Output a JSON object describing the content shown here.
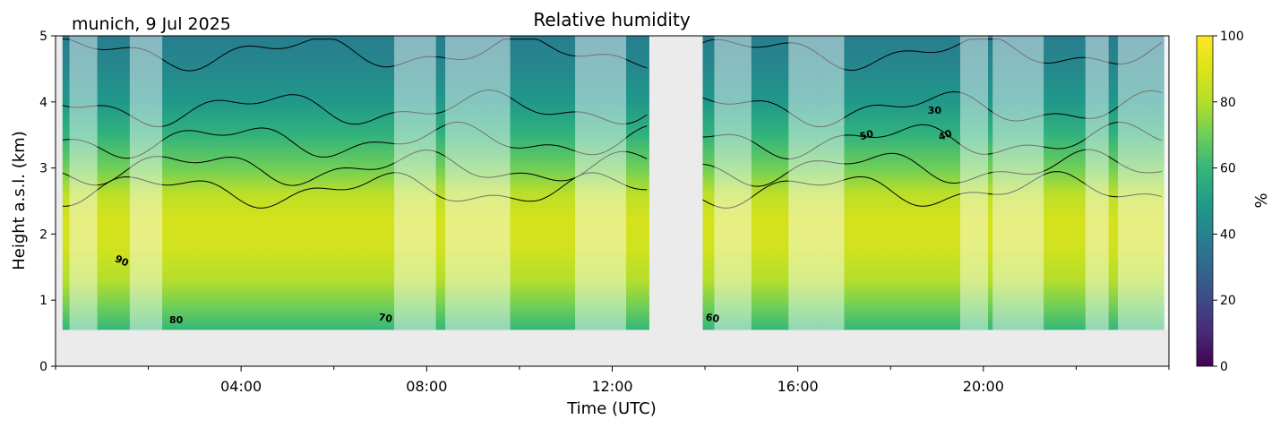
{
  "chart_data": {
    "type": "heatmap",
    "title": "Relative humidity",
    "site_label": "munich, 9 Jul 2025",
    "xlabel": "Time (UTC)",
    "ylabel": "Height a.s.l. (km)",
    "x_range_hours": [
      0,
      24
    ],
    "ylim": [
      0,
      5
    ],
    "x_ticks": [
      {
        "hour": 4,
        "label": "04:00"
      },
      {
        "hour": 8,
        "label": "08:00"
      },
      {
        "hour": 12,
        "label": "12:00"
      },
      {
        "hour": 16,
        "label": "16:00"
      },
      {
        "hour": 20,
        "label": "20:00"
      }
    ],
    "y_ticks": [
      {
        "value": 0,
        "label": "0"
      },
      {
        "value": 1,
        "label": "1"
      },
      {
        "value": 2,
        "label": "2"
      },
      {
        "value": 3,
        "label": "3"
      },
      {
        "value": 4,
        "label": "4"
      },
      {
        "value": 5,
        "label": "5"
      }
    ],
    "colorbar": {
      "label": "%",
      "range": [
        0,
        100
      ],
      "colormap": "viridis",
      "ticks": [
        {
          "value": 0,
          "label": "0"
        },
        {
          "value": 20,
          "label": "20"
        },
        {
          "value": 40,
          "label": "40"
        },
        {
          "value": 60,
          "label": "60"
        },
        {
          "value": 80,
          "label": "80"
        },
        {
          "value": 100,
          "label": "100"
        }
      ]
    },
    "data_lowest_height_km": 0.55,
    "data_gap_hours": [
      12.8,
      13.95
    ],
    "contour_levels": [
      30,
      40,
      50,
      60,
      70,
      80,
      90
    ],
    "contour_labels": [
      {
        "text": "90",
        "hour": 1.4,
        "height": 1.55,
        "angle": 25
      },
      {
        "text": "80",
        "hour": 2.6,
        "height": 0.65,
        "angle": 0
      },
      {
        "text": "70",
        "hour": 7.1,
        "height": 0.68,
        "angle": 10
      },
      {
        "text": "60",
        "hour": 14.15,
        "height": 0.68,
        "angle": 10
      },
      {
        "text": "50",
        "hour": 17.5,
        "height": 3.45,
        "angle": -15
      },
      {
        "text": "40",
        "hour": 19.2,
        "height": 3.45,
        "angle": -20
      },
      {
        "text": "30",
        "hour": 18.95,
        "height": 3.82,
        "angle": 0
      }
    ],
    "profile_rh_percent": [
      {
        "height": 0.55,
        "rh": 60
      },
      {
        "height": 0.9,
        "rh": 70
      },
      {
        "height": 1.3,
        "rh": 80
      },
      {
        "height": 1.8,
        "rh": 87
      },
      {
        "height": 2.2,
        "rh": 88
      },
      {
        "height": 2.6,
        "rh": 82
      },
      {
        "height": 3.0,
        "rh": 70
      },
      {
        "height": 3.5,
        "rh": 58
      },
      {
        "height": 4.0,
        "rh": 48
      },
      {
        "height": 4.5,
        "rh": 42
      },
      {
        "height": 5.0,
        "rh": 38
      }
    ],
    "shaded_intervals_hours": [
      [
        0.3,
        0.9
      ],
      [
        1.6,
        2.3
      ],
      [
        7.3,
        8.2
      ],
      [
        8.4,
        9.8
      ],
      [
        11.2,
        12.3
      ],
      [
        14.2,
        15.0
      ],
      [
        15.8,
        16.4
      ],
      [
        16.4,
        17.0
      ],
      [
        19.5,
        20.1
      ],
      [
        20.2,
        21.3
      ],
      [
        22.2,
        22.7
      ],
      [
        22.9,
        24.0
      ]
    ]
  }
}
